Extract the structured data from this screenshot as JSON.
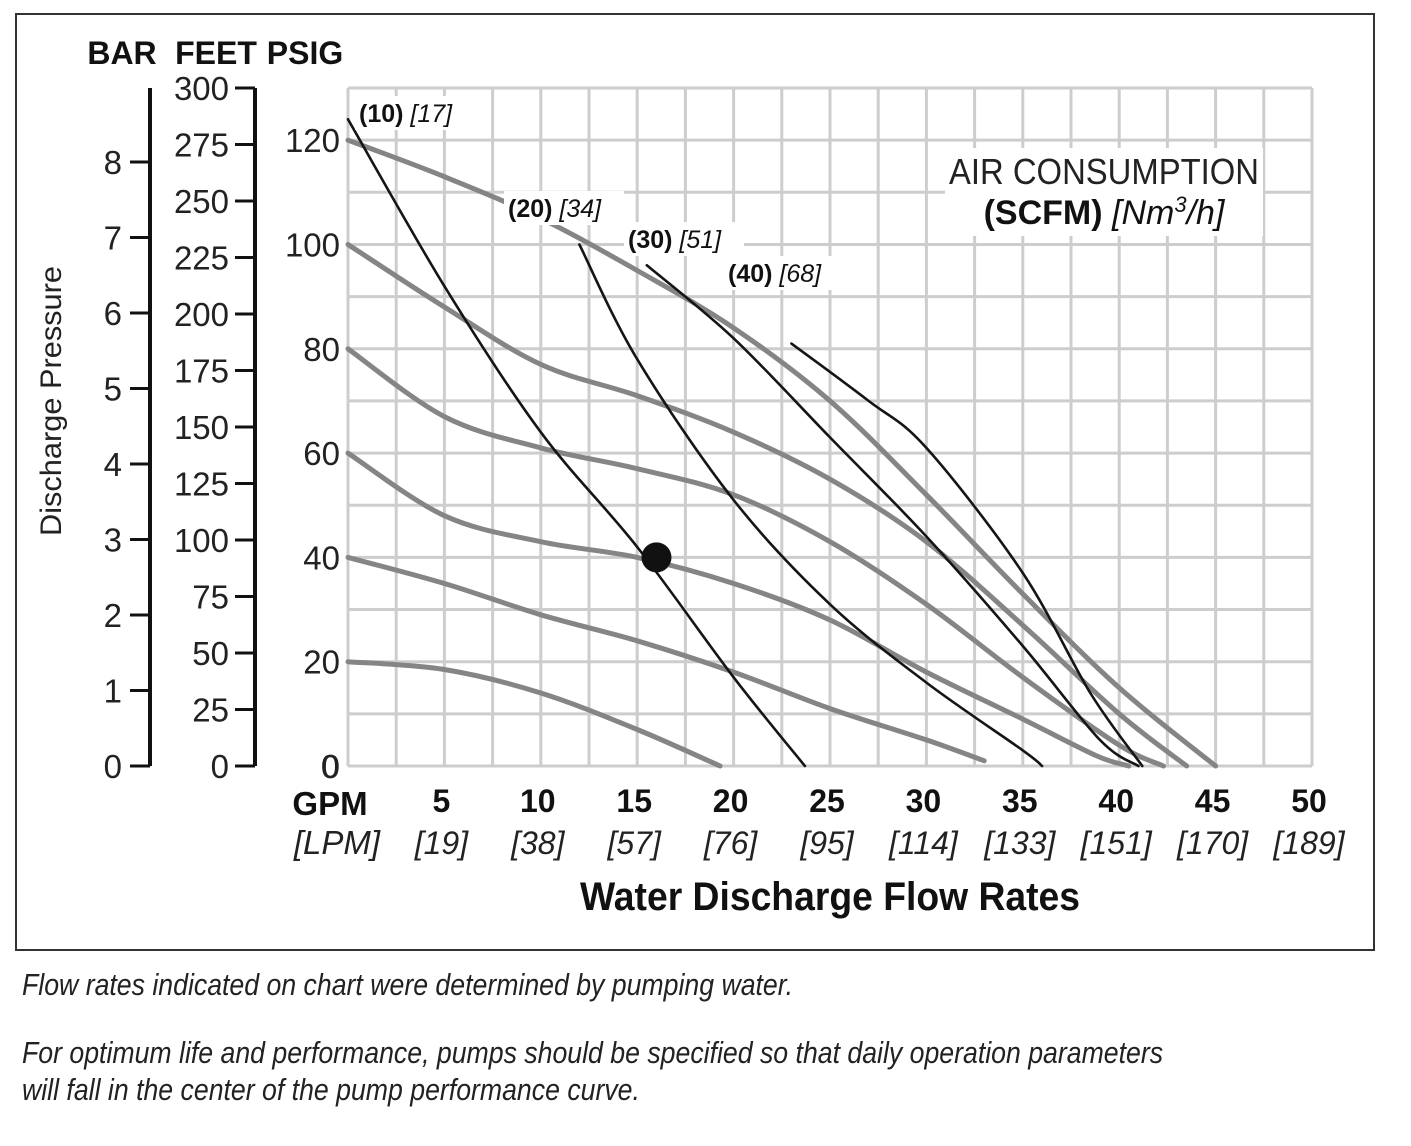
{
  "chart_data": {
    "type": "line",
    "title": "AIR CONSUMPTION",
    "title_line2_bold": "(SCFM)",
    "title_line2_italic": "[Nm",
    "title_line2_sup": "3",
    "title_line2_italic_end": "/h]",
    "axis_headers": {
      "bar": "BAR",
      "feet": "FEET",
      "psig": "PSIG"
    },
    "ylabel": "Discharge Pressure",
    "xlabel": "Water Discharge Flow Rates",
    "x_unit_primary": "GPM",
    "x_unit_secondary": "[LPM]",
    "xlim": [
      0,
      50
    ],
    "ylim": [
      0,
      130
    ],
    "grid": true,
    "x_ticks": [
      {
        "gpm": "5",
        "lpm": "[19]"
      },
      {
        "gpm": "10",
        "lpm": "[38]"
      },
      {
        "gpm": "15",
        "lpm": "[57]"
      },
      {
        "gpm": "20",
        "lpm": "[76]"
      },
      {
        "gpm": "25",
        "lpm": "[95]"
      },
      {
        "gpm": "30",
        "lpm": "[114]"
      },
      {
        "gpm": "35",
        "lpm": "[133]"
      },
      {
        "gpm": "40",
        "lpm": "[151]"
      },
      {
        "gpm": "45",
        "lpm": "[170]"
      },
      {
        "gpm": "50",
        "lpm": "[189]"
      }
    ],
    "x_origin_label": "0",
    "psig_ticks": [
      "0",
      "20",
      "40",
      "60",
      "80",
      "100",
      "120"
    ],
    "feet_ticks": [
      "0",
      "25",
      "50",
      "75",
      "100",
      "125",
      "150",
      "175",
      "200",
      "225",
      "250",
      "275",
      "300"
    ],
    "bar_ticks": [
      "0",
      "1",
      "2",
      "3",
      "4",
      "5",
      "6",
      "7",
      "8"
    ],
    "pressure_curves": [
      {
        "points": [
          [
            0,
            120
          ],
          [
            5,
            113
          ],
          [
            10,
            105
          ],
          [
            15,
            95
          ],
          [
            20,
            84
          ],
          [
            25,
            70
          ],
          [
            30,
            52
          ],
          [
            35,
            33
          ],
          [
            40,
            15
          ],
          [
            45,
            0
          ]
        ]
      },
      {
        "points": [
          [
            0,
            100
          ],
          [
            5,
            88
          ],
          [
            10,
            77
          ],
          [
            15,
            71
          ],
          [
            20,
            64
          ],
          [
            25,
            55
          ],
          [
            30,
            43
          ],
          [
            35,
            27
          ],
          [
            40,
            10
          ],
          [
            43.5,
            0
          ]
        ]
      },
      {
        "points": [
          [
            0,
            80
          ],
          [
            5,
            67
          ],
          [
            10,
            61
          ],
          [
            15,
            57
          ],
          [
            20,
            52
          ],
          [
            25,
            43
          ],
          [
            30,
            31
          ],
          [
            35,
            17
          ],
          [
            40,
            4
          ],
          [
            42.3,
            0
          ]
        ]
      },
      {
        "points": [
          [
            0,
            60
          ],
          [
            5,
            48
          ],
          [
            10,
            43
          ],
          [
            15,
            40
          ],
          [
            20,
            35
          ],
          [
            25,
            28
          ],
          [
            30,
            18
          ],
          [
            35,
            9
          ],
          [
            38.8,
            2
          ],
          [
            40.5,
            0
          ]
        ]
      },
      {
        "points": [
          [
            0,
            40
          ],
          [
            5,
            35
          ],
          [
            10,
            29
          ],
          [
            15,
            24
          ],
          [
            20,
            18
          ],
          [
            25,
            11
          ],
          [
            30,
            5
          ],
          [
            33,
            1
          ]
        ]
      },
      {
        "points": [
          [
            0,
            20
          ],
          [
            5,
            18.5
          ],
          [
            10,
            14
          ],
          [
            15,
            7
          ],
          [
            19.3,
            0
          ]
        ]
      }
    ],
    "air_curves": [
      {
        "label_bold": "(10)",
        "label_italic": "[17]",
        "points": [
          [
            0,
            124
          ],
          [
            5,
            92
          ],
          [
            10,
            64
          ],
          [
            15,
            42
          ],
          [
            20,
            17
          ],
          [
            23.7,
            0
          ]
        ]
      },
      {
        "label_bold": "(20)",
        "label_italic": "[34]",
        "points": [
          [
            12,
            100
          ],
          [
            15,
            78
          ],
          [
            20,
            51
          ],
          [
            25,
            31
          ],
          [
            30,
            16
          ],
          [
            35,
            3
          ],
          [
            36,
            0
          ]
        ]
      },
      {
        "label_bold": "(30)",
        "label_italic": "[51]",
        "points": [
          [
            15.5,
            96
          ],
          [
            20,
            82
          ],
          [
            25,
            63
          ],
          [
            30,
            44
          ],
          [
            35,
            23
          ],
          [
            39,
            5
          ],
          [
            41,
            0
          ]
        ]
      },
      {
        "label_bold": "(40)",
        "label_italic": "[68]",
        "points": [
          [
            23,
            81
          ],
          [
            27,
            70
          ],
          [
            30,
            61
          ],
          [
            35,
            37
          ],
          [
            38.5,
            14
          ],
          [
            41.2,
            0
          ]
        ]
      }
    ],
    "marker": {
      "x": 16,
      "y": 40
    }
  },
  "notes": [
    "Flow rates indicated on chart were determined by pumping water.",
    "For optimum life and performance, pumps should be specified so that daily operation parameters",
    "will fall in the center of the pump performance curve."
  ]
}
